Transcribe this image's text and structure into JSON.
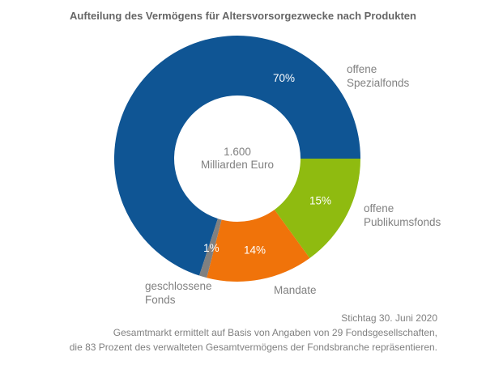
{
  "title": "Aufteilung des Vermögens für Altersvorsorgezwecke nach Produkten",
  "chart_data": {
    "type": "pie",
    "subtype": "donut",
    "title": "Aufteilung des Vermögens für Altersvorsorgezwecke nach Produkten",
    "unit": "percent of 1.600 Milliarden Euro",
    "start_angle_deg_clockwise_from_north": 198,
    "segments": [
      {
        "label": "offene Spezialfonds",
        "value": 70,
        "pct_label": "70%",
        "color": "#0F5594",
        "label_angle_deg": 30
      },
      {
        "label": "offene Publikumsfonds",
        "value": 15,
        "pct_label": "15%",
        "color": "#8FBB10"
      },
      {
        "label": "Mandate",
        "value": 14,
        "pct_label": "14%",
        "color": "#F0730A"
      },
      {
        "label": "geschlossene Fonds",
        "value": 1,
        "pct_label": "1%",
        "color": "#808080"
      }
    ],
    "center_total": "1.600 Milliarden Euro",
    "legend_position": "labels-around-chart",
    "grid": false
  },
  "center_label": {
    "line1": "1.600",
    "line2": "Milliarden Euro"
  },
  "category_labels": {
    "spezialfonds": [
      "offene",
      "Spezialfonds"
    ],
    "publikumsfonds": [
      "offene",
      "Publikumsfonds"
    ],
    "geschlossene": [
      "geschlossene",
      "Fonds"
    ],
    "mandate": "Mandate"
  },
  "footer": {
    "line1": "Stichtag 30. Juni 2020",
    "line2": "Gesamtmarkt ermittelt auf Basis von Angaben von 29 Fondsgesellschaften,",
    "line3": "die 83 Prozent des verwalteten Gesamtvermögens der Fondsbranche repräsentieren."
  },
  "colors": {
    "spezialfonds": "#0F5594",
    "publikumsfonds": "#8FBB10",
    "mandate": "#F0730A",
    "geschlossene": "#808080",
    "title_text": "#666666",
    "label_text": "#818181",
    "pct_text": "#FFFFFF",
    "background": "#FFFFFF"
  }
}
